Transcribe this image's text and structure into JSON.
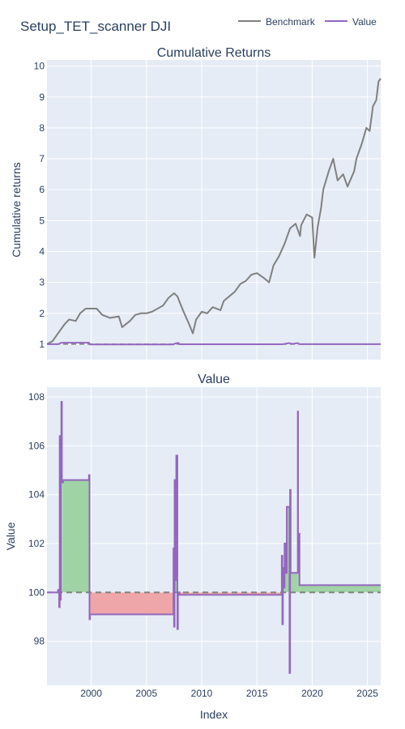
{
  "title": "Setup_TET_scanner DJI",
  "legend": {
    "position": "top-right",
    "items": [
      {
        "name": "Benchmark",
        "color": "#808080"
      },
      {
        "name": "Value",
        "color": "#9467bd"
      }
    ]
  },
  "colors": {
    "plot_bg": "#e5ecf6",
    "grid": "#ffffff",
    "fill_positive": "#9fd2a4",
    "fill_negative": "#eea6a8",
    "baseline": "#808080"
  },
  "x_axis": {
    "label": "Index",
    "range": [
      1996.0,
      2026.2
    ],
    "ticks": [
      2000,
      2005,
      2010,
      2015,
      2020,
      2025
    ],
    "tick_labels": [
      "2000",
      "2005",
      "2010",
      "2015",
      "2020",
      "2025"
    ]
  },
  "chart_data": [
    {
      "type": "line",
      "title": "Cumulative Returns",
      "ylabel": "Cumulative returns",
      "ylim": [
        0.5,
        10.2
      ],
      "yticks": [
        1,
        2,
        3,
        4,
        5,
        6,
        7,
        8,
        9,
        10
      ],
      "ytick_labels": [
        "1",
        "2",
        "3",
        "4",
        "5",
        "6",
        "7",
        "8",
        "9",
        "10"
      ],
      "baseline": 1,
      "series": [
        {
          "name": "Benchmark",
          "color": "#808080",
          "x": [
            1996.0,
            1996.5,
            1997.0,
            1997.6,
            1998.0,
            1998.6,
            1999.0,
            1999.5,
            2000.0,
            2000.5,
            2001.0,
            2001.7,
            2002.5,
            2002.8,
            2003.5,
            2004.0,
            2004.5,
            2005.0,
            2005.5,
            2006.0,
            2006.5,
            2007.0,
            2007.5,
            2007.8,
            2008.3,
            2008.8,
            2009.2,
            2009.5,
            2010.0,
            2010.5,
            2011.0,
            2011.7,
            2012.0,
            2012.5,
            2013.0,
            2013.5,
            2014.0,
            2014.5,
            2015.0,
            2015.6,
            2016.1,
            2016.5,
            2017.0,
            2017.5,
            2018.0,
            2018.5,
            2018.9,
            2019.0,
            2019.5,
            2020.0,
            2020.2,
            2020.5,
            2020.8,
            2021.0,
            2021.5,
            2021.9,
            2022.3,
            2022.8,
            2023.2,
            2023.8,
            2024.0,
            2024.5,
            2024.9,
            2025.2,
            2025.5,
            2025.8,
            2026.0,
            2026.2
          ],
          "y": [
            1.0,
            1.1,
            1.35,
            1.65,
            1.8,
            1.75,
            2.0,
            2.15,
            2.15,
            2.15,
            1.95,
            1.85,
            1.9,
            1.55,
            1.75,
            1.95,
            2.0,
            2.0,
            2.05,
            2.15,
            2.25,
            2.5,
            2.65,
            2.55,
            2.1,
            1.7,
            1.35,
            1.8,
            2.05,
            2.0,
            2.2,
            2.1,
            2.4,
            2.55,
            2.7,
            2.95,
            3.05,
            3.25,
            3.3,
            3.15,
            3.0,
            3.55,
            3.85,
            4.25,
            4.75,
            4.9,
            4.5,
            4.85,
            5.2,
            5.1,
            3.8,
            4.8,
            5.4,
            6.0,
            6.6,
            7.0,
            6.3,
            6.5,
            6.1,
            6.6,
            7.0,
            7.5,
            8.0,
            7.9,
            8.7,
            8.9,
            9.5,
            9.6
          ]
        },
        {
          "name": "Value",
          "color": "#9467bd",
          "x": [
            1996.0,
            1997.0,
            1997.3,
            1997.6,
            1999.8,
            1999.9,
            2007.4,
            2007.6,
            2007.9,
            2008.0,
            2017.2,
            2017.4,
            2017.9,
            2018.2,
            2018.7,
            2018.8,
            2018.9,
            2026.2
          ],
          "y": [
            1.0,
            1.0,
            1.045,
            1.046,
            1.046,
            0.991,
            0.991,
            1.02,
            1.04,
            0.999,
            0.999,
            1.003,
            1.034,
            1.008,
            1.035,
            1.008,
            1.003,
            1.003
          ]
        }
      ]
    },
    {
      "type": "area",
      "title": "Value",
      "ylabel": "Value",
      "ylim": [
        96.2,
        108.4
      ],
      "yticks": [
        98,
        100,
        102,
        104,
        106,
        108
      ],
      "ytick_labels": [
        "98",
        "100",
        "102",
        "104",
        "106",
        "108"
      ],
      "baseline": 100,
      "series": [
        {
          "name": "Value",
          "color": "#9467bd",
          "x": [
            1996.0,
            1997.0,
            1997.1,
            1997.15,
            1997.2,
            1997.25,
            1997.3,
            1997.35,
            1997.45,
            1997.5,
            1999.8,
            1999.8,
            1999.85,
            1999.9,
            2007.4,
            2007.45,
            2007.5,
            2007.55,
            2007.6,
            2007.7,
            2007.8,
            2007.85,
            2007.9,
            2008.0,
            2017.2,
            2017.25,
            2017.3,
            2017.35,
            2017.4,
            2017.5,
            2017.6,
            2017.7,
            2017.8,
            2017.9,
            2017.95,
            2018.0,
            2018.05,
            2018.1,
            2018.2,
            2018.4,
            2018.5,
            2018.6,
            2018.7,
            2018.72,
            2018.8,
            2018.85,
            2018.9,
            2026.2
          ],
          "y": [
            100.0,
            100.1,
            99.4,
            106.4,
            99.7,
            106.0,
            107.8,
            104.5,
            104.6,
            104.6,
            104.6,
            104.8,
            98.9,
            99.1,
            99.1,
            101.8,
            98.6,
            104.6,
            100.5,
            105.6,
            98.5,
            100.0,
            100.0,
            99.9,
            99.9,
            101.5,
            98.7,
            101.0,
            100.2,
            102.0,
            100.8,
            103.5,
            103.5,
            103.5,
            96.7,
            104.2,
            100.8,
            100.8,
            100.8,
            100.8,
            100.8,
            100.8,
            107.4,
            101.2,
            102.4,
            100.3,
            100.3,
            100.3
          ]
        }
      ]
    }
  ]
}
